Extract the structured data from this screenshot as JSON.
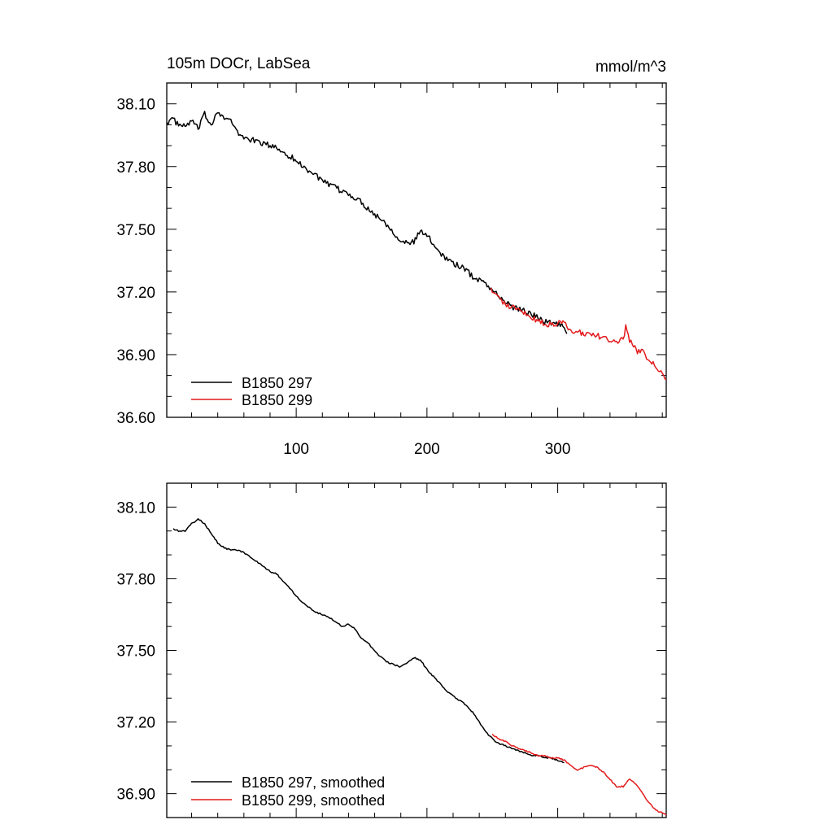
{
  "chart_data": [
    {
      "type": "line",
      "title": "105m DOCr, LabSea",
      "units": "mmol/m^3",
      "xlim": [
        1,
        383
      ],
      "ylim": [
        36.6,
        38.2
      ],
      "x_ticks": [
        100,
        200,
        300
      ],
      "y_ticks": [
        36.6,
        36.9,
        37.2,
        37.5,
        37.8,
        38.1
      ],
      "y_tick_labels": [
        "36.60",
        "36.90",
        "37.20",
        "37.50",
        "37.80",
        "38.10"
      ],
      "x_tick_labels": [
        "100",
        "200",
        "300"
      ],
      "legend": [
        "B1850 297",
        "B1850 299"
      ],
      "series": [
        {
          "name": "B1850 297",
          "color": "#000000",
          "keypoints": [
            [
              1,
              38.01
            ],
            [
              5,
              38.03
            ],
            [
              10,
              38.0
            ],
            [
              15,
              37.99
            ],
            [
              20,
              38.02
            ],
            [
              25,
              37.98
            ],
            [
              30,
              38.05
            ],
            [
              35,
              38.0
            ],
            [
              40,
              38.07
            ],
            [
              45,
              38.03
            ],
            [
              50,
              38.02
            ],
            [
              55,
              37.96
            ],
            [
              60,
              37.94
            ],
            [
              65,
              37.93
            ],
            [
              70,
              37.92
            ],
            [
              75,
              37.91
            ],
            [
              80,
              37.9
            ],
            [
              85,
              37.89
            ],
            [
              90,
              37.87
            ],
            [
              95,
              37.85
            ],
            [
              100,
              37.83
            ],
            [
              105,
              37.8
            ],
            [
              110,
              37.78
            ],
            [
              115,
              37.76
            ],
            [
              120,
              37.73
            ],
            [
              125,
              37.71
            ],
            [
              130,
              37.7
            ],
            [
              135,
              37.68
            ],
            [
              140,
              37.67
            ],
            [
              145,
              37.65
            ],
            [
              150,
              37.63
            ],
            [
              155,
              37.6
            ],
            [
              160,
              37.57
            ],
            [
              165,
              37.55
            ],
            [
              170,
              37.52
            ],
            [
              175,
              37.48
            ],
            [
              180,
              37.45
            ],
            [
              185,
              37.43
            ],
            [
              190,
              37.44
            ],
            [
              195,
              37.49
            ],
            [
              200,
              37.47
            ],
            [
              205,
              37.43
            ],
            [
              210,
              37.39
            ],
            [
              215,
              37.36
            ],
            [
              220,
              37.34
            ],
            [
              225,
              37.32
            ],
            [
              230,
              37.31
            ],
            [
              235,
              37.27
            ],
            [
              240,
              37.26
            ],
            [
              245,
              37.24
            ],
            [
              250,
              37.21
            ],
            [
              255,
              37.18
            ],
            [
              260,
              37.15
            ],
            [
              265,
              37.13
            ],
            [
              270,
              37.12
            ],
            [
              275,
              37.11
            ],
            [
              280,
              37.09
            ],
            [
              285,
              37.08
            ],
            [
              290,
              37.06
            ],
            [
              295,
              37.05
            ],
            [
              300,
              37.05
            ],
            [
              305,
              37.03
            ],
            [
              307,
              37.0
            ]
          ],
          "noise": 0.014
        },
        {
          "name": "B1850 299",
          "color": "#e31a1c",
          "keypoints": [
            [
              249,
              37.22
            ],
            [
              255,
              37.17
            ],
            [
              260,
              37.14
            ],
            [
              265,
              37.13
            ],
            [
              270,
              37.11
            ],
            [
              275,
              37.1
            ],
            [
              280,
              37.08
            ],
            [
              285,
              37.06
            ],
            [
              290,
              37.05
            ],
            [
              295,
              37.04
            ],
            [
              300,
              37.05
            ],
            [
              305,
              37.05
            ],
            [
              310,
              37.02
            ],
            [
              315,
              37.01
            ],
            [
              320,
              37.0
            ],
            [
              325,
              37.0
            ],
            [
              330,
              36.99
            ],
            [
              335,
              36.98
            ],
            [
              340,
              36.97
            ],
            [
              345,
              36.95
            ],
            [
              350,
              36.98
            ],
            [
              352,
              37.03
            ],
            [
              355,
              36.97
            ],
            [
              360,
              36.92
            ],
            [
              365,
              36.91
            ],
            [
              370,
              36.88
            ],
            [
              375,
              36.85
            ],
            [
              380,
              36.81
            ],
            [
              383,
              36.78
            ]
          ],
          "noise": 0.014
        }
      ]
    },
    {
      "type": "line",
      "title": "",
      "xlim": [
        1,
        383
      ],
      "ylim": [
        36.8,
        38.2
      ],
      "x_ticks": [
        100,
        200,
        300
      ],
      "y_ticks": [
        36.9,
        37.2,
        37.5,
        37.8,
        38.1
      ],
      "y_tick_labels": [
        "36.90",
        "37.20",
        "37.50",
        "37.80",
        "38.10"
      ],
      "legend": [
        "B1850 297, smoothed",
        "B1850 299, smoothed"
      ],
      "series": [
        {
          "name": "B1850 297, smoothed",
          "color": "#000000",
          "keypoints": [
            [
              6,
              38.01
            ],
            [
              10,
              38.0
            ],
            [
              15,
              38.0
            ],
            [
              20,
              38.03
            ],
            [
              25,
              38.05
            ],
            [
              30,
              38.03
            ],
            [
              35,
              37.99
            ],
            [
              40,
              37.95
            ],
            [
              45,
              37.93
            ],
            [
              50,
              37.92
            ],
            [
              55,
              37.92
            ],
            [
              60,
              37.91
            ],
            [
              65,
              37.89
            ],
            [
              70,
              37.87
            ],
            [
              75,
              37.85
            ],
            [
              80,
              37.83
            ],
            [
              85,
              37.82
            ],
            [
              90,
              37.79
            ],
            [
              95,
              37.76
            ],
            [
              100,
              37.73
            ],
            [
              105,
              37.7
            ],
            [
              110,
              37.68
            ],
            [
              115,
              37.66
            ],
            [
              120,
              37.65
            ],
            [
              125,
              37.64
            ],
            [
              130,
              37.62
            ],
            [
              135,
              37.6
            ],
            [
              140,
              37.61
            ],
            [
              145,
              37.59
            ],
            [
              150,
              37.55
            ],
            [
              155,
              37.53
            ],
            [
              160,
              37.5
            ],
            [
              165,
              37.47
            ],
            [
              170,
              37.45
            ],
            [
              175,
              37.44
            ],
            [
              180,
              37.43
            ],
            [
              185,
              37.45
            ],
            [
              190,
              37.47
            ],
            [
              195,
              37.46
            ],
            [
              200,
              37.42
            ],
            [
              205,
              37.39
            ],
            [
              210,
              37.36
            ],
            [
              215,
              37.33
            ],
            [
              220,
              37.31
            ],
            [
              225,
              37.29
            ],
            [
              230,
              37.27
            ],
            [
              235,
              37.24
            ],
            [
              240,
              37.2
            ],
            [
              245,
              37.16
            ],
            [
              250,
              37.13
            ],
            [
              255,
              37.11
            ],
            [
              260,
              37.1
            ],
            [
              265,
              37.09
            ],
            [
              270,
              37.08
            ],
            [
              275,
              37.07
            ],
            [
              280,
              37.06
            ],
            [
              285,
              37.06
            ],
            [
              290,
              37.05
            ],
            [
              295,
              37.05
            ],
            [
              300,
              37.04
            ],
            [
              305,
              37.03
            ]
          ],
          "noise": 0.003
        },
        {
          "name": "B1850 299, smoothed",
          "color": "#e31a1c",
          "keypoints": [
            [
              250,
              37.15
            ],
            [
              255,
              37.13
            ],
            [
              260,
              37.12
            ],
            [
              265,
              37.1
            ],
            [
              270,
              37.09
            ],
            [
              275,
              37.08
            ],
            [
              280,
              37.07
            ],
            [
              285,
              37.06
            ],
            [
              290,
              37.06
            ],
            [
              295,
              37.05
            ],
            [
              300,
              37.05
            ],
            [
              305,
              37.04
            ],
            [
              310,
              37.02
            ],
            [
              315,
              37.0
            ],
            [
              320,
              37.01
            ],
            [
              325,
              37.02
            ],
            [
              330,
              37.01
            ],
            [
              335,
              36.99
            ],
            [
              340,
              36.96
            ],
            [
              345,
              36.93
            ],
            [
              350,
              36.93
            ],
            [
              355,
              36.96
            ],
            [
              360,
              36.94
            ],
            [
              365,
              36.9
            ],
            [
              370,
              36.86
            ],
            [
              375,
              36.83
            ],
            [
              380,
              36.82
            ],
            [
              383,
              36.81
            ]
          ],
          "noise": 0.003
        }
      ]
    }
  ]
}
